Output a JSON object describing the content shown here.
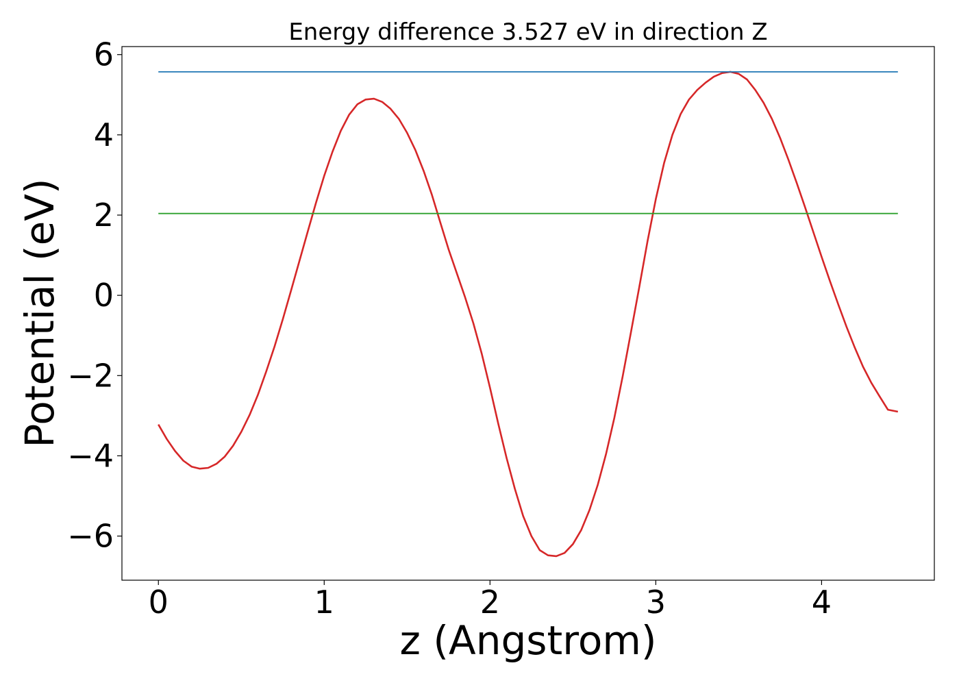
{
  "chart_data": {
    "type": "line",
    "title": "Energy difference 3.527 eV in direction Z",
    "xlabel": "z (Angstrom)",
    "ylabel": "Potential (eV)",
    "xlim": [
      -0.22,
      4.68
    ],
    "ylim": [
      -7.1,
      6.2
    ],
    "xticks": [
      0,
      1,
      2,
      3,
      4
    ],
    "xtick_labels": [
      "0",
      "1",
      "2",
      "3",
      "4"
    ],
    "yticks": [
      -6,
      -4,
      -2,
      0,
      2,
      4,
      6
    ],
    "ytick_labels": [
      "−6",
      "−4",
      "−2",
      "0",
      "2",
      "4",
      "6"
    ],
    "grid": false,
    "series": [
      {
        "color": "#d62728",
        "x": [
          0.0,
          0.05,
          0.1,
          0.15,
          0.2,
          0.25,
          0.3,
          0.35,
          0.4,
          0.45,
          0.5,
          0.55,
          0.6,
          0.65,
          0.7,
          0.75,
          0.8,
          0.85,
          0.9,
          0.95,
          1.0,
          1.05,
          1.1,
          1.15,
          1.2,
          1.25,
          1.3,
          1.35,
          1.4,
          1.45,
          1.5,
          1.55,
          1.6,
          1.65,
          1.7,
          1.75,
          1.8,
          1.85,
          1.9,
          1.95,
          2.0,
          2.05,
          2.1,
          2.15,
          2.2,
          2.25,
          2.3,
          2.35,
          2.4,
          2.45,
          2.5,
          2.55,
          2.6,
          2.65,
          2.7,
          2.75,
          2.8,
          2.85,
          2.9,
          2.95,
          3.0,
          3.05,
          3.1,
          3.15,
          3.2,
          3.25,
          3.3,
          3.35,
          3.4,
          3.45,
          3.5,
          3.55,
          3.6,
          3.65,
          3.7,
          3.75,
          3.8,
          3.85,
          3.9,
          3.95,
          4.0,
          4.05,
          4.1,
          4.15,
          4.2,
          4.25,
          4.3,
          4.35,
          4.4,
          4.46
        ],
        "y": [
          -3.22,
          -3.58,
          -3.88,
          -4.12,
          -4.27,
          -4.32,
          -4.3,
          -4.2,
          -4.02,
          -3.75,
          -3.4,
          -2.98,
          -2.48,
          -1.9,
          -1.28,
          -0.6,
          0.12,
          0.85,
          1.58,
          2.3,
          2.98,
          3.58,
          4.1,
          4.5,
          4.76,
          4.88,
          4.9,
          4.82,
          4.65,
          4.4,
          4.05,
          3.62,
          3.1,
          2.5,
          1.82,
          1.15,
          0.55,
          -0.05,
          -0.7,
          -1.45,
          -2.3,
          -3.2,
          -4.05,
          -4.82,
          -5.5,
          -6.0,
          -6.35,
          -6.48,
          -6.5,
          -6.42,
          -6.2,
          -5.85,
          -5.35,
          -4.72,
          -3.95,
          -3.05,
          -2.02,
          -0.92,
          0.2,
          1.35,
          2.4,
          3.3,
          4.0,
          4.52,
          4.88,
          5.12,
          5.3,
          5.45,
          5.54,
          5.57,
          5.52,
          5.38,
          5.12,
          4.8,
          4.4,
          3.92,
          3.38,
          2.8,
          2.2,
          1.58,
          0.96,
          0.36,
          -0.22,
          -0.78,
          -1.3,
          -1.78,
          -2.18,
          -2.52,
          -2.85,
          -2.9
        ]
      },
      {
        "color": "#1f77b4",
        "x": [
          0.0,
          4.46
        ],
        "y": [
          5.57,
          5.57
        ]
      },
      {
        "color": "#2ca02c",
        "x": [
          0.0,
          4.46
        ],
        "y": [
          2.04,
          2.04
        ]
      }
    ]
  }
}
